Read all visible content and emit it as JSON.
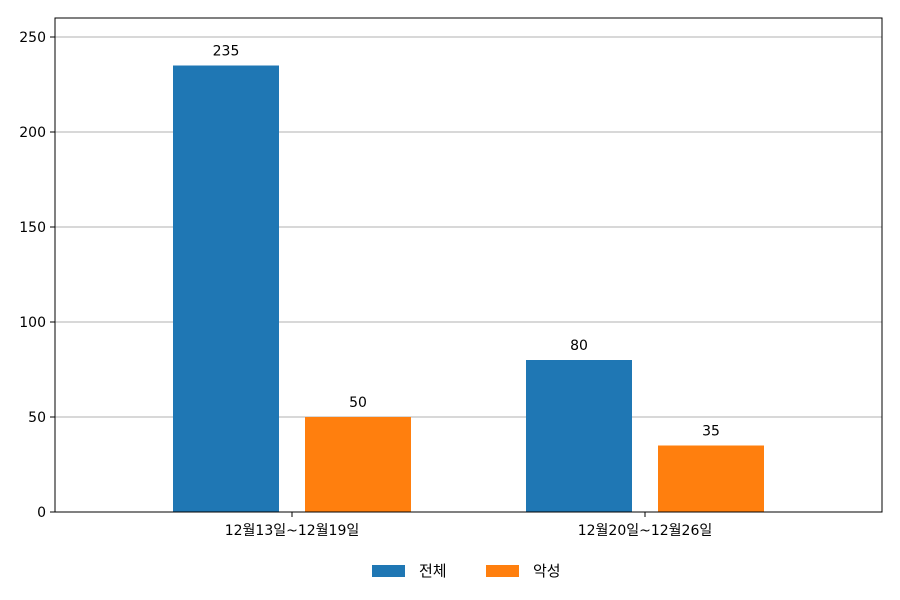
{
  "chart_data": {
    "type": "bar",
    "categories": [
      "12월13일~12월19일",
      "12월20일~12월26일"
    ],
    "series": [
      {
        "name": "전체",
        "values": [
          235,
          80
        ],
        "color": "#1f77b4"
      },
      {
        "name": "악성",
        "values": [
          50,
          35
        ],
        "color": "#ff7f0e"
      }
    ],
    "ylim": [
      0,
      260
    ],
    "yticks": [
      0,
      50,
      100,
      150,
      200,
      250
    ],
    "grid": "horizontal",
    "legend": "bottom-center",
    "data_labels": true
  }
}
